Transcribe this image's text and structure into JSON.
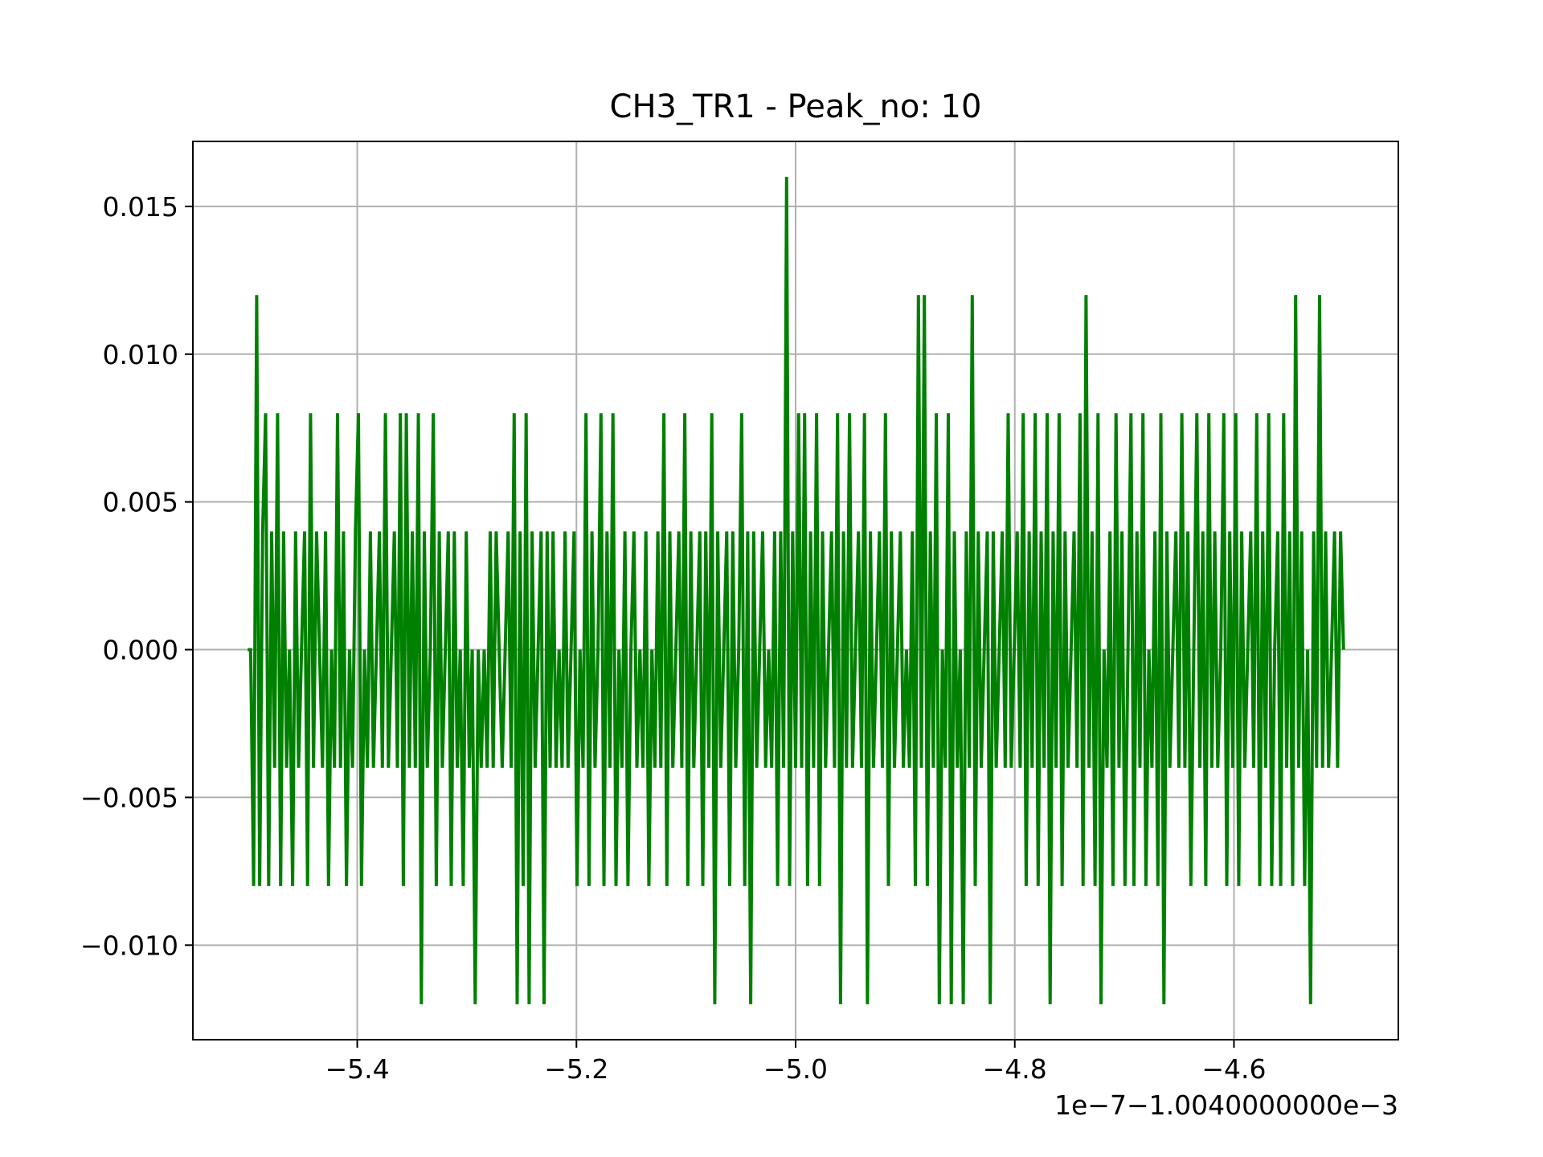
{
  "chart_data": {
    "type": "line",
    "title": "CH3_TR1 - Peak_no: 10",
    "xlabel": "",
    "ylabel": "",
    "x_offset_label": "1e−7−1.0040000000e−3",
    "xlim": [
      -5.55,
      -4.45
    ],
    "ylim": [
      -0.0132,
      0.0172
    ],
    "grid": true,
    "legend": "none",
    "xticks": [
      -5.4,
      -5.2,
      -5.0,
      -4.8,
      -4.6
    ],
    "xtick_labels": [
      "−5.4",
      "−5.2",
      "−5.0",
      "−4.8",
      "−4.6"
    ],
    "yticks": [
      0.015,
      0.01,
      0.005,
      0.0,
      -0.005,
      -0.01
    ],
    "ytick_labels": [
      "0.015",
      "0.010",
      "0.005",
      "0.000",
      "−0.005",
      "−0.010"
    ],
    "line_color": "#008000",
    "series": [
      {
        "x_start": -5.5,
        "x_end": -4.5,
        "levels": [
          0.0,
          0.0,
          -0.008,
          0.012,
          -0.008,
          0.004,
          0.008,
          -0.008,
          0.004,
          -0.004,
          0.008,
          -0.008,
          0.004,
          -0.004,
          0.0,
          -0.008,
          0.004,
          -0.004,
          0.0,
          0.004,
          -0.008,
          0.008,
          -0.004,
          0.004,
          0.0,
          -0.004,
          0.004,
          -0.008,
          0.0,
          -0.004,
          0.008,
          -0.004,
          0.004,
          -0.008,
          0.0,
          -0.004,
          0.004,
          0.008,
          -0.008,
          0.0,
          -0.004,
          0.004,
          -0.004,
          0.0,
          0.004,
          -0.004,
          0.008,
          -0.004,
          0.0,
          0.004,
          -0.004,
          0.008,
          -0.008,
          0.008,
          -0.004,
          0.004,
          -0.004,
          0.008,
          -0.012,
          0.004,
          -0.004,
          0.0,
          0.008,
          -0.008,
          0.004,
          -0.004,
          0.0,
          0.004,
          -0.008,
          0.004,
          -0.004,
          0.0,
          -0.008,
          0.004,
          -0.004,
          0.0,
          -0.012,
          0.0,
          -0.004,
          0.0,
          -0.004,
          0.004,
          -0.004,
          0.004,
          0.0,
          -0.004,
          0.0,
          0.004,
          -0.004,
          0.008,
          -0.012,
          0.004,
          -0.008,
          0.008,
          -0.012,
          0.004,
          -0.004,
          0.0,
          0.004,
          -0.012,
          0.004,
          -0.004,
          0.004,
          -0.004,
          0.0,
          -0.004,
          0.004,
          -0.004,
          0.0,
          0.004,
          -0.008,
          0.0,
          -0.004,
          0.008,
          -0.008,
          0.004,
          -0.004,
          0.0,
          0.008,
          -0.008,
          0.004,
          -0.004,
          0.008,
          -0.008,
          0.0,
          -0.004,
          0.004,
          -0.008,
          0.0,
          0.004,
          -0.004,
          0.0,
          -0.004,
          0.004,
          -0.008,
          0.0,
          -0.004,
          0.004,
          -0.004,
          0.008,
          -0.008,
          0.004,
          -0.004,
          0.0,
          0.004,
          -0.004,
          0.008,
          -0.008,
          0.004,
          -0.004,
          0.0,
          0.004,
          -0.008,
          0.004,
          -0.004,
          0.008,
          -0.012,
          0.004,
          -0.004,
          0.0,
          0.004,
          -0.008,
          0.004,
          -0.004,
          0.0,
          0.008,
          -0.008,
          0.004,
          -0.012,
          0.004,
          -0.004,
          0.0,
          0.004,
          -0.004,
          0.0,
          -0.004,
          0.004,
          -0.008,
          0.004,
          -0.004,
          0.016,
          -0.008,
          0.004,
          -0.004,
          0.008,
          -0.004,
          0.008,
          -0.008,
          0.004,
          -0.004,
          0.008,
          -0.008,
          0.004,
          -0.004,
          0.0,
          0.004,
          -0.004,
          0.008,
          -0.012,
          0.004,
          -0.004,
          0.008,
          -0.004,
          0.0,
          0.004,
          -0.004,
          0.008,
          -0.012,
          0.004,
          -0.004,
          0.0,
          0.004,
          -0.004,
          0.008,
          -0.008,
          0.004,
          -0.004,
          0.0,
          0.004,
          -0.004,
          0.0,
          -0.004,
          0.004,
          -0.008,
          0.012,
          -0.004,
          0.012,
          -0.008,
          0.004,
          -0.004,
          0.008,
          -0.012,
          0.0,
          -0.004,
          0.008,
          -0.012,
          0.004,
          -0.004,
          0.0,
          -0.012,
          0.004,
          -0.004,
          0.012,
          -0.008,
          0.004,
          -0.004,
          0.0,
          0.004,
          -0.012,
          0.004,
          -0.004,
          0.0,
          0.004,
          -0.004,
          0.008,
          -0.004,
          0.0,
          0.004,
          -0.004,
          0.008,
          -0.008,
          0.004,
          -0.004,
          0.008,
          -0.008,
          0.004,
          -0.004,
          0.008,
          -0.012,
          0.004,
          -0.004,
          0.008,
          -0.008,
          0.004,
          -0.004,
          0.0,
          0.004,
          -0.004,
          0.008,
          -0.008,
          0.012,
          -0.004,
          0.004,
          -0.008,
          0.008,
          -0.012,
          0.0,
          -0.004,
          0.004,
          -0.008,
          0.008,
          -0.004,
          0.004,
          -0.008,
          0.0,
          0.008,
          -0.008,
          0.004,
          -0.004,
          0.008,
          -0.008,
          0.0,
          -0.004,
          0.004,
          -0.008,
          0.008,
          -0.012,
          0.004,
          -0.004,
          0.0,
          0.004,
          -0.004,
          0.008,
          -0.004,
          0.004,
          -0.008,
          0.0,
          0.008,
          -0.004,
          0.004,
          -0.008,
          0.008,
          -0.004,
          0.004,
          -0.004,
          0.0,
          0.008,
          -0.008,
          0.004,
          -0.004,
          0.008,
          -0.008,
          0.004,
          -0.004,
          0.0,
          0.004,
          -0.004,
          0.008,
          -0.008,
          0.004,
          -0.004,
          0.008,
          -0.008,
          0.0,
          0.004,
          -0.008,
          0.008,
          -0.004,
          0.004,
          -0.008,
          0.012,
          -0.004,
          0.004,
          -0.008,
          0.0,
          -0.012,
          0.004,
          -0.004,
          0.012,
          -0.004,
          0.004,
          -0.004,
          0.0,
          0.004,
          -0.004,
          0.004,
          0.0
        ]
      }
    ]
  }
}
